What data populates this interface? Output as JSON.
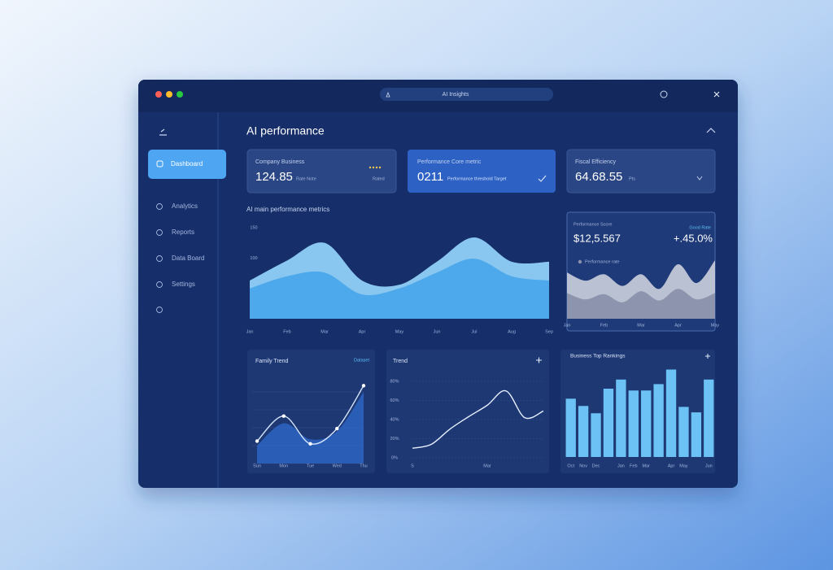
{
  "window": {
    "address": "AI Insights"
  },
  "sidebar": {
    "active": "Dashboard",
    "items": [
      "Analytics",
      "Reports",
      "Data Board",
      "Settings"
    ]
  },
  "header": {
    "title": "AI performance",
    "section": "AI main performance metrics"
  },
  "kpis": [
    {
      "label": "Company Business",
      "value": "124.85",
      "note": "Rate Note",
      "tag": "Rated"
    },
    {
      "label": "Performance Core metric",
      "value": "0211",
      "note": "Performance threshold Target"
    },
    {
      "label": "Fiscal Efficiency",
      "value": "64.68.55",
      "note": "Pts"
    }
  ],
  "charts": {
    "area_chart": {
      "type": "area",
      "categories": [
        "Jan",
        "Feb",
        "Mar",
        "Apr",
        "May",
        "Jun",
        "Jul",
        "Aug",
        "Sep"
      ],
      "ylim": [
        0,
        150
      ],
      "yticks": [
        50,
        100,
        150
      ],
      "tick_labels": true,
      "grid": false,
      "series": [
        {
          "color": "#8fd0f8",
          "values": [
            63,
            96,
            125,
            63,
            56,
            94,
            134,
            94,
            94
          ]
        },
        {
          "color": "#4aa8ea",
          "values": [
            50,
            70,
            76,
            40,
            50,
            76,
            99,
            70,
            63
          ]
        }
      ]
    },
    "score_chart": {
      "type": "area",
      "label": "Performance Score",
      "value": "$12,5.567",
      "change": "+.45.0%",
      "tag": "Good Rate",
      "categories": [
        "Jan",
        null,
        "Feb",
        null,
        "Mar",
        null,
        "Apr",
        null,
        "May"
      ],
      "ylim": [
        0,
        100
      ],
      "grid": false,
      "series": [
        {
          "color": "#c3c8d8",
          "values": [
            79,
            65,
            76,
            56,
            76,
            51,
            93,
            61,
            100
          ]
        },
        {
          "name": "Performance rate",
          "color": "#8a91ab",
          "values": [
            44,
            33,
            42,
            28,
            47,
            31,
            51,
            33,
            44
          ]
        }
      ]
    },
    "line_chart": {
      "type": "line",
      "title": "Family Trend",
      "tag": "Dataset",
      "categories": [
        "Sun",
        "Mon",
        "Tue",
        "Wed",
        "Thu"
      ],
      "ylim": [
        0,
        100
      ],
      "yticks": [
        0,
        20,
        40,
        60,
        80
      ],
      "tick_labels": false,
      "grid": true,
      "markers": true,
      "series": [
        {
          "color": "#d6e6ff",
          "values": [
            25,
            53,
            22,
            39,
            87
          ]
        },
        {
          "color": "#2f6fd3",
          "area": true,
          "values": [
            20,
            45,
            27,
            36,
            80
          ]
        }
      ]
    },
    "trend_chart": {
      "type": "line",
      "title": "Trend",
      "categories": [
        "S",
        null,
        null,
        null,
        "Mar",
        null,
        null,
        null
      ],
      "ylim": [
        0,
        80
      ],
      "yticks": [
        {
          "value": 0,
          "label": "0%"
        },
        {
          "value": 20,
          "label": "20%"
        },
        {
          "value": 40,
          "label": "40%"
        },
        {
          "value": 60,
          "label": "60%"
        },
        {
          "value": 80,
          "label": "80%"
        }
      ],
      "tick_labels": true,
      "grid": true,
      "markers": false,
      "series": [
        {
          "color": "#e6eeff",
          "values": [
            10,
            14,
            30,
            43,
            55,
            70,
            42,
            49
          ]
        }
      ]
    },
    "bar_chart": {
      "type": "bar",
      "title": "Business Top Rankings",
      "categories": [
        "Oct",
        "Nov",
        "Dec",
        null,
        "Jan",
        "Feb",
        "Mar",
        null,
        "Apr",
        "May",
        null,
        "Jun"
      ],
      "ylim": [
        0,
        100
      ],
      "grid": false,
      "color": "#6cc2f4",
      "values": [
        64,
        56,
        48,
        75,
        85,
        73,
        73,
        80,
        96,
        55,
        49,
        85
      ]
    }
  }
}
